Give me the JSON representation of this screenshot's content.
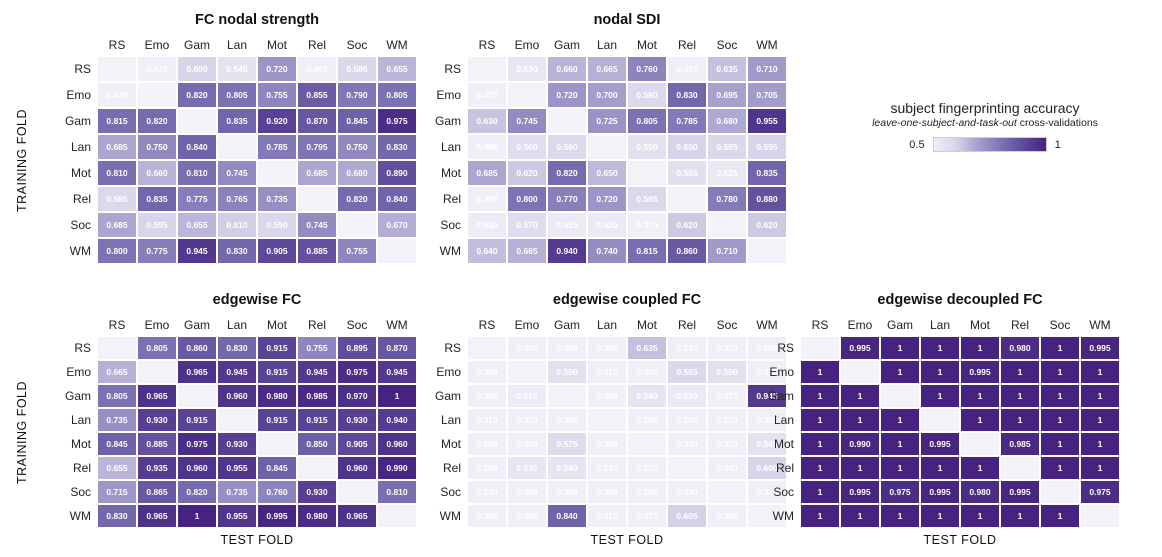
{
  "figure": {
    "row_axis_label": "TRAINING FOLD",
    "col_axis_label": "TEST FOLD",
    "tasks": [
      "RS",
      "Emo",
      "Gam",
      "Lan",
      "Mot",
      "Rel",
      "Soc",
      "WM"
    ],
    "diagonal_marker": "-"
  },
  "legend": {
    "title": "subject fingerprinting accuracy",
    "subtitle_italic": "leave-one-subject-and-task-out",
    "subtitle_rest": " cross-validations",
    "min_label": "0.5",
    "max_label": "1"
  },
  "colors": {
    "cell_text": "#ffffff",
    "diagonal_color": "#F3F2F9",
    "accent_dark": "#462380",
    "cmap_stops": [
      [
        0.5,
        "#F0EEF7"
      ],
      [
        0.55,
        "#E3E1EF"
      ],
      [
        0.6,
        "#D6D4E9"
      ],
      [
        0.7,
        "#A49ECC"
      ],
      [
        0.8,
        "#7C73B4"
      ],
      [
        0.9,
        "#5E4A9A"
      ],
      [
        1.0,
        "#462380"
      ]
    ]
  },
  "chart_data": [
    {
      "type": "heatmap",
      "title": "FC nodal strength",
      "rows": [
        "RS",
        "Emo",
        "Gam",
        "Lan",
        "Mot",
        "Rel",
        "Soc",
        "WM"
      ],
      "cols": [
        "RS",
        "Emo",
        "Gam",
        "Lan",
        "Mot",
        "Rel",
        "Soc",
        "WM"
      ],
      "vmin": 0.5,
      "vmax": 1,
      "values": [
        [
          null,
          0.47,
          0.6,
          0.545,
          0.72,
          0.465,
          0.585,
          0.655
        ],
        [
          0.475,
          null,
          0.82,
          0.805,
          0.755,
          0.855,
          0.79,
          0.805
        ],
        [
          0.815,
          0.82,
          null,
          0.835,
          0.92,
          0.87,
          0.845,
          0.975
        ],
        [
          0.685,
          0.75,
          0.84,
          null,
          0.785,
          0.795,
          0.75,
          0.83
        ],
        [
          0.81,
          0.66,
          0.81,
          0.745,
          null,
          0.685,
          0.68,
          0.89
        ],
        [
          0.585,
          0.835,
          0.775,
          0.765,
          0.735,
          null,
          0.82,
          0.84
        ],
        [
          0.685,
          0.595,
          0.655,
          0.61,
          0.59,
          0.745,
          null,
          0.67
        ],
        [
          0.8,
          0.775,
          0.945,
          0.83,
          0.905,
          0.885,
          0.755,
          null
        ]
      ]
    },
    {
      "type": "heatmap",
      "title": "nodal SDI",
      "rows": [
        "RS",
        "Emo",
        "Gam",
        "Lan",
        "Mot",
        "Rel",
        "Soc",
        "WM"
      ],
      "cols": [
        "RS",
        "Emo",
        "Gam",
        "Lan",
        "Mot",
        "Rel",
        "Soc",
        "WM"
      ],
      "vmin": 0.5,
      "vmax": 1,
      "values": [
        [
          null,
          0.53,
          0.66,
          0.665,
          0.76,
          0.475,
          0.635,
          0.71
        ],
        [
          0.475,
          null,
          0.72,
          0.7,
          0.58,
          0.83,
          0.695,
          0.705
        ],
        [
          0.63,
          0.745,
          null,
          0.725,
          0.805,
          0.785,
          0.68,
          0.955
        ],
        [
          0.495,
          0.56,
          0.58,
          null,
          0.55,
          0.6,
          0.585,
          0.595
        ],
        [
          0.685,
          0.62,
          0.82,
          0.65,
          null,
          0.555,
          0.525,
          0.835
        ],
        [
          0.385,
          0.8,
          0.77,
          0.72,
          0.585,
          null,
          0.78,
          0.88
        ],
        [
          0.51,
          0.57,
          0.515,
          0.52,
          0.37,
          0.62,
          null,
          0.62
        ],
        [
          0.64,
          0.665,
          0.94,
          0.74,
          0.815,
          0.86,
          0.71,
          null
        ]
      ]
    },
    {
      "type": "heatmap",
      "title": "edgewise FC",
      "rows": [
        "RS",
        "Emo",
        "Gam",
        "Lan",
        "Mot",
        "Rel",
        "Soc",
        "WM"
      ],
      "cols": [
        "RS",
        "Emo",
        "Gam",
        "Lan",
        "Mot",
        "Rel",
        "Soc",
        "WM"
      ],
      "vmin": 0.5,
      "vmax": 1,
      "values": [
        [
          null,
          0.805,
          0.86,
          0.83,
          0.915,
          0.755,
          0.895,
          0.87
        ],
        [
          0.665,
          null,
          0.965,
          0.945,
          0.915,
          0.945,
          0.975,
          0.945
        ],
        [
          0.805,
          0.965,
          null,
          0.96,
          0.98,
          0.985,
          0.97,
          1
        ],
        [
          0.735,
          0.93,
          0.915,
          null,
          0.915,
          0.915,
          0.93,
          0.94
        ],
        [
          0.845,
          0.885,
          0.975,
          0.93,
          null,
          0.85,
          0.905,
          0.96
        ],
        [
          0.655,
          0.935,
          0.96,
          0.955,
          0.845,
          null,
          0.96,
          0.99
        ],
        [
          0.715,
          0.865,
          0.82,
          0.735,
          0.76,
          0.93,
          null,
          0.81
        ],
        [
          0.83,
          0.965,
          1,
          0.955,
          0.995,
          0.98,
          0.965,
          null
        ]
      ]
    },
    {
      "type": "heatmap",
      "title": "edgewise coupled FC",
      "rows": [
        "RS",
        "Emo",
        "Gam",
        "Lan",
        "Mot",
        "Rel",
        "Soc",
        "WM"
      ],
      "cols": [
        "RS",
        "Emo",
        "Gam",
        "Lan",
        "Mot",
        "Rel",
        "Soc",
        "WM"
      ],
      "vmin": 0.5,
      "vmax": 1,
      "values": [
        [
          null,
          0.425,
          0.49,
          0.385,
          0.635,
          0.245,
          0.32,
          0.5
        ],
        [
          0.35,
          null,
          0.55,
          0.415,
          0.425,
          0.585,
          0.55,
          0.47
        ],
        [
          0.355,
          0.515,
          null,
          0.45,
          0.54,
          0.52,
          0.475,
          0.945
        ],
        [
          0.31,
          0.32,
          0.365,
          null,
          0.295,
          0.235,
          0.27,
          0.385
        ],
        [
          0.5,
          0.42,
          0.575,
          0.39,
          null,
          0.34,
          0.32,
          0.545
        ],
        [
          0.16,
          0.535,
          0.54,
          0.245,
          0.225,
          null,
          0.44,
          0.6
        ],
        [
          0.24,
          0.45,
          0.35,
          0.3,
          0.265,
          0.43,
          null,
          0.335
        ],
        [
          0.305,
          0.455,
          0.84,
          0.415,
          0.475,
          0.605,
          0.355,
          null
        ]
      ]
    },
    {
      "type": "heatmap",
      "title": "edgewise decoupled FC",
      "rows": [
        "RS",
        "Emo",
        "Gam",
        "Lan",
        "Mot",
        "Rel",
        "Soc",
        "WM"
      ],
      "cols": [
        "RS",
        "Emo",
        "Gam",
        "Lan",
        "Mot",
        "Rel",
        "Soc",
        "WM"
      ],
      "vmin": 0.5,
      "vmax": 1,
      "values": [
        [
          null,
          0.995,
          1,
          1,
          1,
          0.98,
          1,
          0.995
        ],
        [
          1,
          null,
          1,
          1,
          0.995,
          1,
          1,
          1
        ],
        [
          1,
          1,
          null,
          1,
          1,
          1,
          1,
          1
        ],
        [
          1,
          1,
          1,
          null,
          1,
          1,
          1,
          1
        ],
        [
          1,
          0.99,
          1,
          0.995,
          null,
          0.985,
          1,
          1
        ],
        [
          1,
          1,
          1,
          1,
          1,
          null,
          1,
          1
        ],
        [
          1,
          0.995,
          0.975,
          0.995,
          0.98,
          0.995,
          null,
          0.975
        ],
        [
          1,
          1,
          1,
          1,
          1,
          1,
          1,
          null
        ]
      ]
    }
  ]
}
